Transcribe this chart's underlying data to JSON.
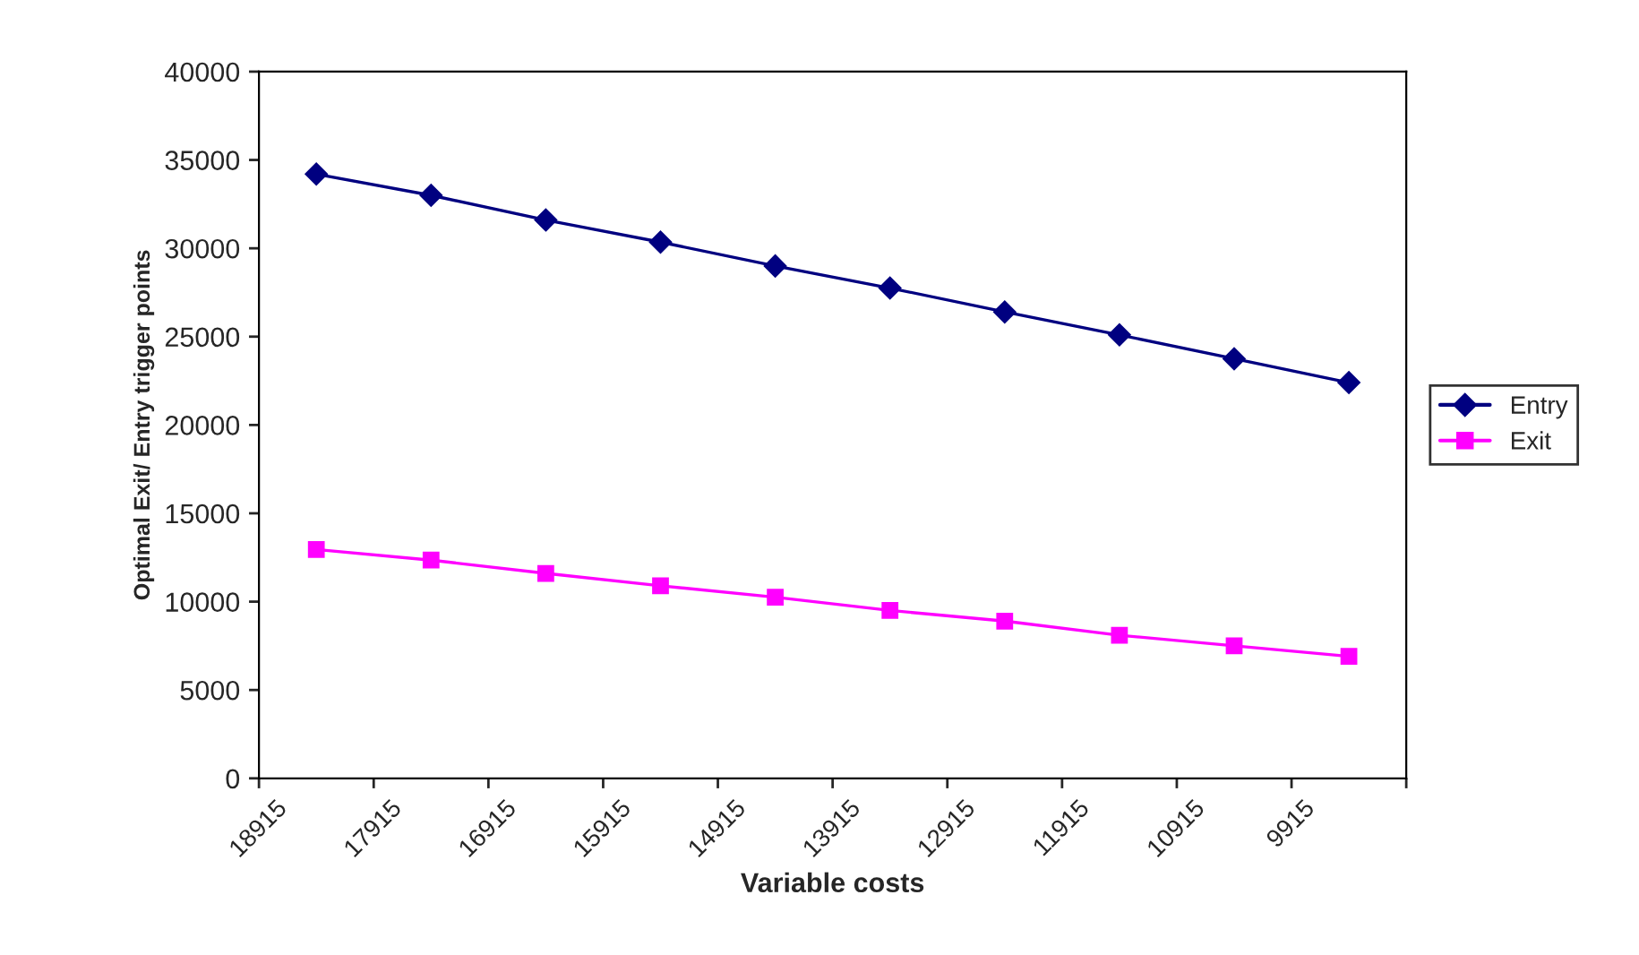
{
  "chart_data": {
    "type": "line",
    "xlabel": "Variable costs",
    "ylabel": "Optimal Exit/ Entry trigger points",
    "x": [
      18415,
      17415,
      16415,
      15415,
      14415,
      13415,
      12415,
      11415,
      10415,
      9415
    ],
    "series": [
      {
        "name": "Entry",
        "color": "#000080",
        "marker": "diamond",
        "values": [
          34200,
          33000,
          31600,
          30350,
          29000,
          27750,
          26400,
          25100,
          23750,
          22400
        ]
      },
      {
        "name": "Exit",
        "color": "#ff00ff",
        "marker": "square",
        "values": [
          12950,
          12350,
          11600,
          10900,
          10250,
          9500,
          8900,
          8100,
          7500,
          6900
        ]
      }
    ],
    "xlim": [
      18915,
      8915
    ],
    "xticks": [
      18915,
      17915,
      16915,
      15915,
      14915,
      13915,
      12915,
      11915,
      10915,
      9915,
      {
        "value": 8915,
        "label": null
      }
    ],
    "ylim": [
      0,
      40000
    ],
    "yticks": [
      0,
      5000,
      10000,
      15000,
      20000,
      25000,
      30000,
      35000,
      40000
    ],
    "grid": false,
    "legend": "right",
    "line_style": "solid"
  }
}
